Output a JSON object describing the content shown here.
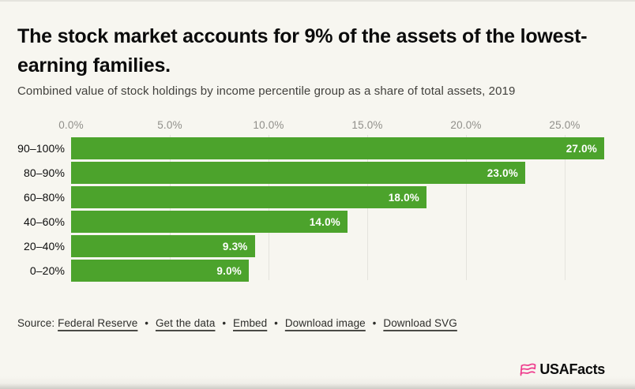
{
  "header": {
    "title": "The stock market accounts for 9% of the assets of the lowest-earning families.",
    "subtitle": "Combined value of stock holdings by income percentile group as a share of total assets, 2019"
  },
  "chart_data": {
    "type": "bar",
    "orientation": "horizontal",
    "title": "The stock market accounts for 9% of the assets of the lowest-earning families.",
    "subtitle": "Combined value of stock holdings by income percentile group as a share of total assets, 2019",
    "categories": [
      "90–100%",
      "80–90%",
      "60–80%",
      "40–60%",
      "20–40%",
      "0–20%"
    ],
    "values": [
      27.0,
      23.0,
      18.0,
      14.0,
      9.3,
      9.0
    ],
    "value_labels": [
      "27.0%",
      "23.0%",
      "18.0%",
      "14.0%",
      "9.3%",
      "9.0%"
    ],
    "x_ticks": [
      "0.0%",
      "5.0%",
      "10.0%",
      "15.0%",
      "20.0%",
      "25.0%"
    ],
    "x_tick_values": [
      0,
      5,
      10,
      15,
      20,
      25
    ],
    "xlim": [
      0,
      28
    ],
    "grid": true,
    "bar_color": "#4ca32c",
    "value_label_color": "#ffffff",
    "unit": "%"
  },
  "footer": {
    "source_label": "Source:",
    "links": [
      "Federal Reserve",
      "Get the data",
      "Embed",
      "Download image",
      "Download SVG"
    ],
    "separator": "•"
  },
  "logo": {
    "text": "USAFacts",
    "icon_color": "#ee3a8c"
  }
}
